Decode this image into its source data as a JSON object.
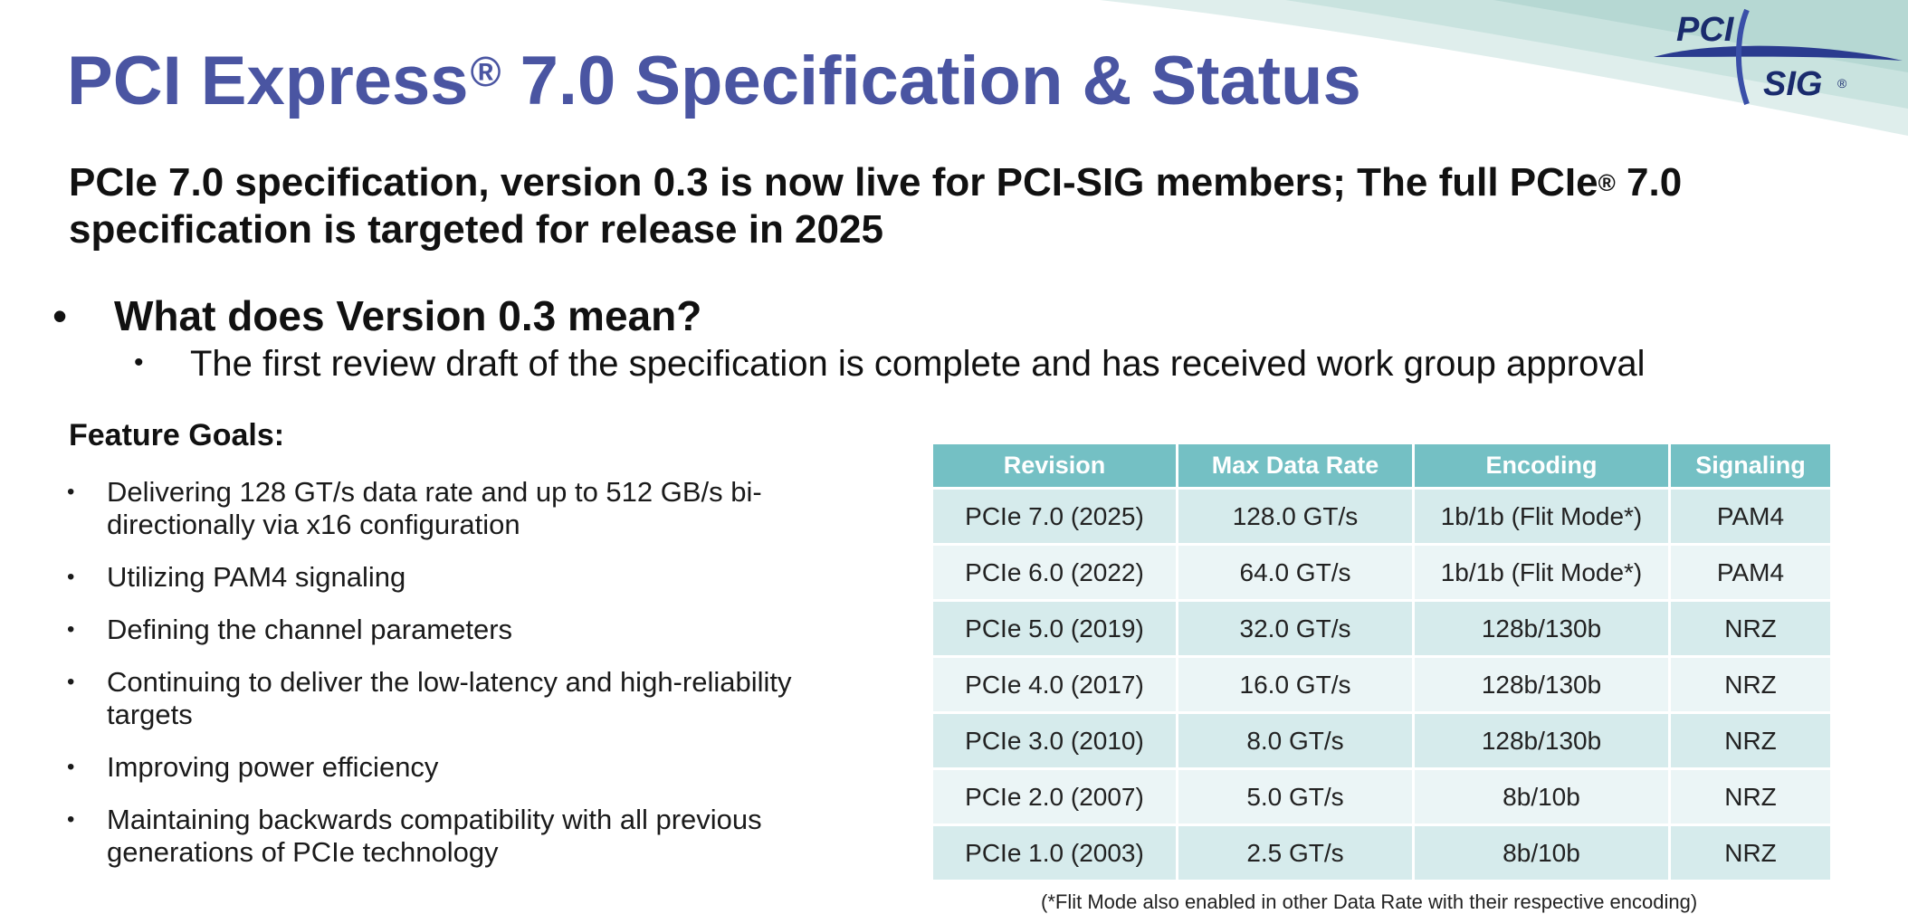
{
  "slide": {
    "title_main": "PCI Express",
    "title_mark": "®",
    "title_rest": " 7.0 Specification & Status",
    "subtitle_part1": "PCIe 7.0 specification, version 0.3 is now live for PCI-SIG members; The full PCIe",
    "subtitle_mark": "®",
    "subtitle_part2": " 7.0 specification is targeted for release in 2025",
    "bullet_main": "What does Version 0.3 mean?",
    "bullet_sub": "The first review draft of the specification is complete and has received work group approval",
    "bullet_glyph": "•",
    "feature_goals_heading": "Feature Goals:",
    "feature_goals": [
      "Delivering 128 GT/s data rate and up to 512 GB/s bi-directionally via x16 configuration",
      "Utilizing PAM4 signaling",
      "Defining the channel parameters",
      "Continuing to deliver the low-latency and high-reliability targets",
      "Improving power efficiency",
      "Maintaining backwards compatibility with all previous generations of PCIe technology"
    ],
    "footnote": "(*Flit Mode also enabled in other Data Rate with their respective encoding)"
  },
  "logo": {
    "top_text": "PCI",
    "bottom_text": "SIG",
    "mark": "®"
  },
  "table": {
    "headers": [
      "Revision",
      "Max Data Rate",
      "Encoding",
      "Signaling"
    ],
    "rows": [
      [
        "PCIe 7.0 (2025)",
        "128.0 GT/s",
        "1b/1b (Flit Mode*)",
        "PAM4"
      ],
      [
        "PCIe 6.0 (2022)",
        "64.0 GT/s",
        "1b/1b (Flit Mode*)",
        "PAM4"
      ],
      [
        "PCIe 5.0 (2019)",
        "32.0 GT/s",
        "128b/130b",
        "NRZ"
      ],
      [
        "PCIe 4.0 (2017)",
        "16.0 GT/s",
        "128b/130b",
        "NRZ"
      ],
      [
        "PCIe 3.0 (2010)",
        "8.0 GT/s",
        "128b/130b",
        "NRZ"
      ],
      [
        "PCIe 2.0 (2007)",
        "5.0 GT/s",
        "8b/10b",
        "NRZ"
      ],
      [
        "PCIe 1.0 (2003)",
        "2.5 GT/s",
        "8b/10b",
        "NRZ"
      ]
    ]
  },
  "colors": {
    "title": "#4a55a2",
    "table_header": "#74c0c4",
    "row_dark": "#d6ebec",
    "row_light": "#ebf5f6",
    "swoosh": "#cfe6e3",
    "logo": "#1a2b6d"
  }
}
